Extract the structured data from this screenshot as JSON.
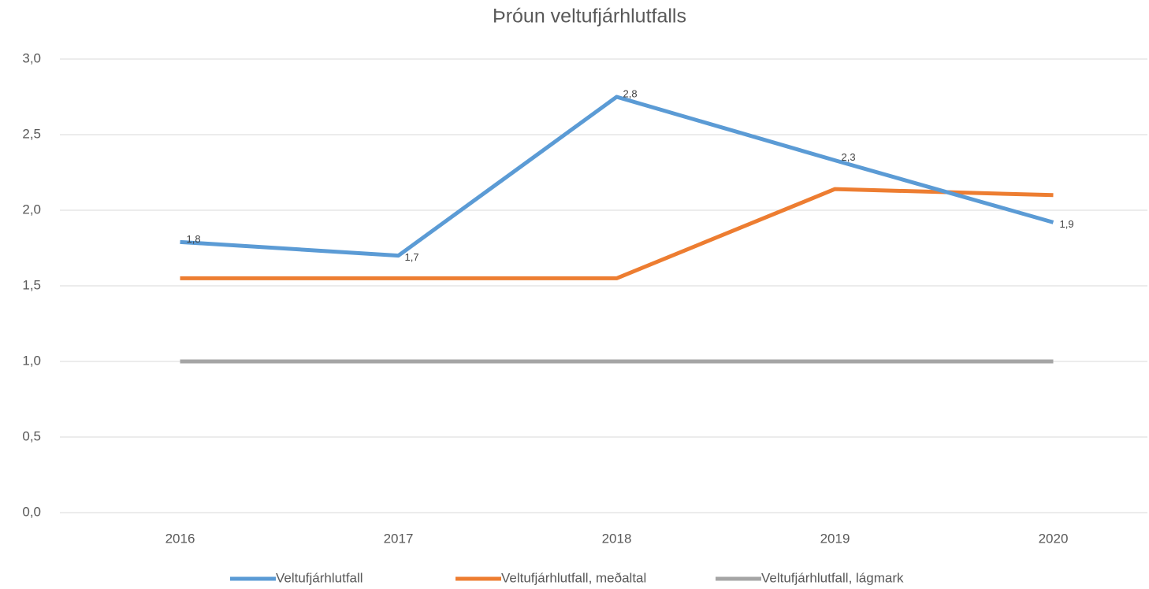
{
  "chart_data": {
    "type": "line",
    "title": "Þróun veltufjárhlutfalls",
    "categories": [
      "2016",
      "2017",
      "2018",
      "2019",
      "2020"
    ],
    "series": [
      {
        "name": "Veltufjárhlutfall",
        "color": "#5b9bd5",
        "values": [
          1.79,
          1.7,
          2.75,
          2.33,
          1.92
        ],
        "value_labels": [
          "1,8",
          "1,7",
          "2,8",
          "2,3",
          "1,9"
        ]
      },
      {
        "name": "Veltufjárhlutfall, meðaltal",
        "color": "#ed7d31",
        "values": [
          1.55,
          1.55,
          1.55,
          2.14,
          2.1
        ]
      },
      {
        "name": "Veltufjárhlutfall, lágmark",
        "color": "#a5a5a5",
        "values": [
          1.0,
          1.0,
          1.0,
          1.0,
          1.0
        ]
      }
    ],
    "ylim": [
      0,
      3
    ],
    "yticks": [
      {
        "value": 0,
        "label": "0,0"
      },
      {
        "value": 0.5,
        "label": "0,5"
      },
      {
        "value": 1,
        "label": "1,0"
      },
      {
        "value": 1.5,
        "label": "1,5"
      },
      {
        "value": 2,
        "label": "2,0"
      },
      {
        "value": 2.5,
        "label": "2,5"
      },
      {
        "value": 3,
        "label": "3,0"
      }
    ],
    "grid": true,
    "legend": "bottom"
  }
}
